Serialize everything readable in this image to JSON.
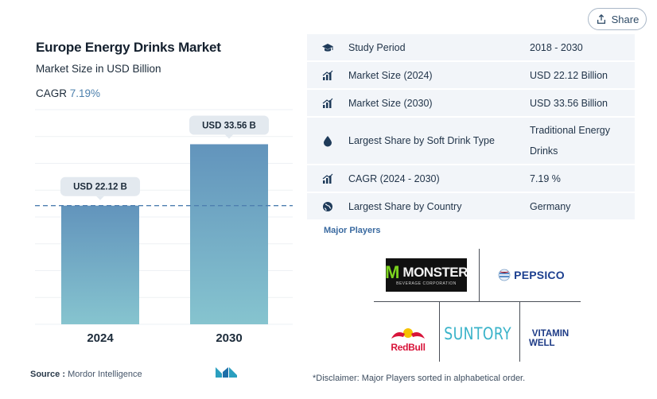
{
  "share": {
    "label": "Share"
  },
  "header": {
    "title": "Europe Energy Drinks Market",
    "subtitle": "Market Size in USD Billion",
    "cagr_label": "CAGR",
    "cagr_value": "7.19%"
  },
  "chart_data": {
    "type": "bar",
    "categories": [
      "2024",
      "2030"
    ],
    "values": [
      22.12,
      33.56
    ],
    "data_labels": [
      "USD 22.12 B",
      "USD 33.56 B"
    ],
    "title": "Europe Energy Drinks Market",
    "ylabel": "",
    "xlabel": "",
    "ylim": [
      0,
      40
    ],
    "grid": true,
    "reference_line": 22.12,
    "colors": {
      "bar_top": "#6294bc",
      "bar_bottom": "#86c4cf",
      "ref_line": "#4e7fb0"
    }
  },
  "source": {
    "label": "Source :",
    "value": "Mordor Intelligence"
  },
  "table": {
    "rows": [
      {
        "icon": "graduation-cap-icon",
        "label": "Study Period",
        "value": "2018 - 2030"
      },
      {
        "icon": "bar-chart-icon",
        "label": "Market Size (2024)",
        "value": "USD 22.12 Billion"
      },
      {
        "icon": "bar-chart-icon",
        "label": "Market Size (2030)",
        "value": "USD 33.56 Billion"
      },
      {
        "icon": "drop-icon",
        "label": "Largest Share by Soft Drink Type",
        "value": "Traditional Energy Drinks"
      },
      {
        "icon": "bar-chart-icon",
        "label": "CAGR (2024 - 2030)",
        "value": "7.19 %"
      },
      {
        "icon": "globe-icon",
        "label": "Largest Share by Country",
        "value": "Germany"
      }
    ]
  },
  "major_players": {
    "heading": "Major Players",
    "logos": {
      "monster": {
        "name": "MONSTER",
        "sub": "BEVERAGE CORPORATION"
      },
      "pepsico": {
        "name": "PEPSICO"
      },
      "redbull": {
        "name": "RedBull"
      },
      "suntory": {
        "name": "SUNTORY"
      },
      "vitamin": {
        "line1": "VITAMIN",
        "line2": "WELL"
      }
    }
  },
  "disclaimer": "*Disclaimer: Major Players sorted in alphabetical order."
}
